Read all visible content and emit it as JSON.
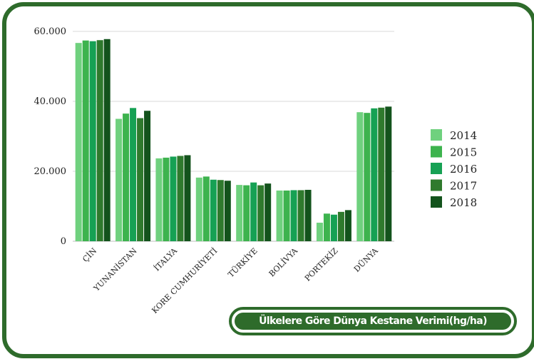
{
  "chart_data": {
    "type": "bar",
    "title": "Ülkelere Göre Dünya Kestane Verimi(hg/ha)",
    "xlabel": "",
    "ylabel": "",
    "ylim": [
      0,
      60000
    ],
    "yticks": [
      0,
      20000,
      40000,
      60000
    ],
    "ytick_labels": [
      "0",
      "20.000",
      "40.000",
      "60.000"
    ],
    "grid": true,
    "legend_position": "right",
    "categories": [
      "ÇİN",
      "YUNANİSTAN",
      "İTALYA",
      "KORE CUMHURİYETİ",
      "TÜRKİYE",
      "BOLİVYA",
      "PORTEKİZ",
      "DÜNYA"
    ],
    "series": [
      {
        "name": "2014",
        "color": "#6fd17e",
        "values": [
          56700,
          35000,
          23700,
          18200,
          16100,
          14500,
          5300,
          36900
        ]
      },
      {
        "name": "2015",
        "color": "#3db34e",
        "values": [
          57400,
          36500,
          23900,
          18500,
          16000,
          14500,
          7900,
          36700
        ]
      },
      {
        "name": "2016",
        "color": "#16a154",
        "values": [
          57200,
          38100,
          24200,
          17600,
          16800,
          14600,
          7600,
          38000
        ]
      },
      {
        "name": "2017",
        "color": "#2f7a2d",
        "values": [
          57500,
          35200,
          24400,
          17500,
          16000,
          14600,
          8400,
          38200
        ]
      },
      {
        "name": "2018",
        "color": "#13531c",
        "values": [
          57800,
          37300,
          24600,
          17300,
          16500,
          14700,
          8900,
          38500
        ]
      }
    ]
  }
}
